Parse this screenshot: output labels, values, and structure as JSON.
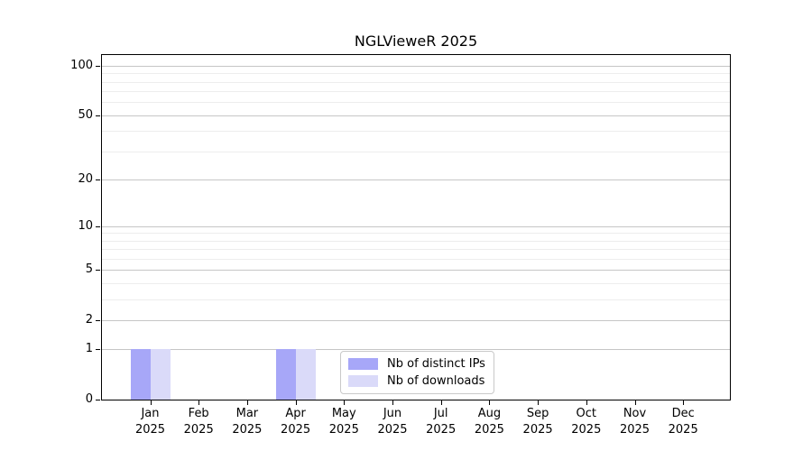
{
  "title": "NGLVieweR 2025",
  "chart_data": {
    "type": "bar",
    "title": "NGLVieweR 2025",
    "categories": [
      "Jan 2025",
      "Feb 2025",
      "Mar 2025",
      "Apr 2025",
      "May 2025",
      "Jun 2025",
      "Jul 2025",
      "Aug 2025",
      "Sep 2025",
      "Oct 2025",
      "Nov 2025",
      "Dec 2025"
    ],
    "series": [
      {
        "name": "Nb of distinct IPs",
        "color": "#a7a7f8",
        "values": [
          1,
          0,
          0,
          1,
          0,
          0,
          0,
          0,
          0,
          0,
          0,
          0
        ]
      },
      {
        "name": "Nb of downloads",
        "color": "#dadaf9",
        "values": [
          1,
          0,
          0,
          1,
          0,
          0,
          0,
          0,
          0,
          0,
          0,
          0
        ]
      }
    ],
    "xlabel": "",
    "ylabel": "",
    "y_axis": {
      "scale": "log1p",
      "major_ticks": [
        0,
        1,
        2,
        5,
        10,
        20,
        50,
        100
      ],
      "minor_gridlines": [
        3,
        4,
        6,
        7,
        8,
        9,
        30,
        40,
        60,
        70,
        80,
        90
      ],
      "top_value": 116
    },
    "ylim": [
      0,
      116
    ],
    "grid": true,
    "legend": {
      "position": "lower center",
      "entries": [
        "Nb of distinct IPs",
        "Nb of downloads"
      ]
    }
  }
}
